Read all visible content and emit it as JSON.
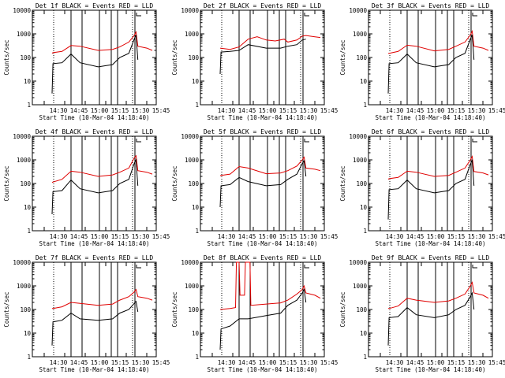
{
  "chart_data": {
    "type": "line",
    "layout": "3x3 grid",
    "y_scale": "log",
    "ylim": [
      1,
      10000
    ],
    "y_ticks": [
      "1",
      "10",
      "100",
      "1000",
      "10000"
    ],
    "x_tick_labels": [
      "14:30",
      "14:45",
      "15:00",
      "15:15",
      "15:30",
      "15:45"
    ],
    "xlabel": "Start Time (10-Mar-04 14:18:40)",
    "ylabel": "Counts/sec",
    "colors": {
      "black_series": "#000000",
      "red_series": "#e00000"
    },
    "panels": [
      {
        "title": "Det 1f BLACK = Events  RED = LLD",
        "red": [
          [
            14.5,
            150
          ],
          [
            15,
            160
          ],
          [
            20,
            180
          ],
          [
            25,
            320
          ],
          [
            30,
            300
          ],
          [
            40,
            200
          ],
          [
            48,
            220
          ],
          [
            52,
            280
          ],
          [
            57,
            450
          ],
          [
            60,
            850
          ],
          [
            61,
            1200
          ],
          [
            62,
            300
          ],
          [
            67,
            250
          ],
          [
            70,
            200
          ]
        ],
        "black": [
          [
            14.5,
            3
          ],
          [
            15,
            55
          ],
          [
            20,
            60
          ],
          [
            25,
            140
          ],
          [
            30,
            60
          ],
          [
            40,
            40
          ],
          [
            48,
            50
          ],
          [
            52,
            100
          ],
          [
            57,
            150
          ],
          [
            60,
            600
          ],
          [
            61,
            900
          ],
          [
            62,
            80
          ]
        ]
      },
      {
        "title": "Det 2f BLACK = Events  RED = LLD",
        "red": [
          [
            14.5,
            250
          ],
          [
            20,
            220
          ],
          [
            25,
            280
          ],
          [
            30,
            600
          ],
          [
            35,
            750
          ],
          [
            40,
            550
          ],
          [
            45,
            500
          ],
          [
            50,
            600
          ],
          [
            52,
            450
          ],
          [
            57,
            550
          ],
          [
            60,
            800
          ],
          [
            62,
            850
          ],
          [
            67,
            750
          ],
          [
            70,
            700
          ]
        ],
        "black": [
          [
            14.5,
            20
          ],
          [
            15,
            170
          ],
          [
            20,
            180
          ],
          [
            25,
            200
          ],
          [
            30,
            350
          ],
          [
            40,
            250
          ],
          [
            48,
            250
          ],
          [
            52,
            300
          ],
          [
            57,
            350
          ],
          [
            60,
            550
          ],
          [
            62,
            600
          ]
        ]
      },
      {
        "title": "Det 3f BLACK = Events  RED = LLD",
        "red": [
          [
            14.5,
            150
          ],
          [
            15,
            150
          ],
          [
            20,
            180
          ],
          [
            25,
            330
          ],
          [
            30,
            300
          ],
          [
            40,
            190
          ],
          [
            48,
            220
          ],
          [
            52,
            300
          ],
          [
            57,
            450
          ],
          [
            60,
            900
          ],
          [
            61,
            1300
          ],
          [
            62,
            300
          ],
          [
            67,
            250
          ],
          [
            70,
            200
          ]
        ],
        "black": [
          [
            14.5,
            3
          ],
          [
            15,
            55
          ],
          [
            20,
            60
          ],
          [
            25,
            140
          ],
          [
            30,
            60
          ],
          [
            40,
            40
          ],
          [
            48,
            50
          ],
          [
            52,
            100
          ],
          [
            57,
            150
          ],
          [
            60,
            600
          ],
          [
            61,
            900
          ],
          [
            62,
            80
          ]
        ]
      },
      {
        "title": "Det 4f BLACK = Events  RED = LLD",
        "red": [
          [
            14.5,
            110
          ],
          [
            15,
            115
          ],
          [
            20,
            150
          ],
          [
            25,
            330
          ],
          [
            30,
            300
          ],
          [
            40,
            200
          ],
          [
            48,
            230
          ],
          [
            52,
            300
          ],
          [
            57,
            450
          ],
          [
            60,
            1200
          ],
          [
            61,
            1500
          ],
          [
            62,
            350
          ],
          [
            67,
            300
          ],
          [
            70,
            250
          ]
        ],
        "black": [
          [
            14.5,
            5
          ],
          [
            15,
            45
          ],
          [
            20,
            50
          ],
          [
            25,
            140
          ],
          [
            30,
            60
          ],
          [
            40,
            40
          ],
          [
            48,
            50
          ],
          [
            52,
            100
          ],
          [
            57,
            150
          ],
          [
            60,
            700
          ],
          [
            61,
            1000
          ],
          [
            62,
            80
          ]
        ]
      },
      {
        "title": "Det 5f BLACK = Events  RED = LLD",
        "red": [
          [
            14.5,
            210
          ],
          [
            15,
            220
          ],
          [
            20,
            250
          ],
          [
            25,
            520
          ],
          [
            30,
            450
          ],
          [
            40,
            260
          ],
          [
            48,
            280
          ],
          [
            52,
            350
          ],
          [
            57,
            550
          ],
          [
            60,
            1000
          ],
          [
            61,
            1300
          ],
          [
            62,
            450
          ],
          [
            67,
            400
          ],
          [
            70,
            350
          ]
        ],
        "black": [
          [
            14.5,
            10
          ],
          [
            15,
            80
          ],
          [
            20,
            90
          ],
          [
            25,
            180
          ],
          [
            30,
            120
          ],
          [
            40,
            80
          ],
          [
            48,
            90
          ],
          [
            52,
            150
          ],
          [
            57,
            250
          ],
          [
            60,
            700
          ],
          [
            61,
            900
          ],
          [
            62,
            200
          ]
        ]
      },
      {
        "title": "Det 6f BLACK = Events  RED = LLD",
        "red": [
          [
            14.5,
            150
          ],
          [
            15,
            160
          ],
          [
            20,
            180
          ],
          [
            25,
            330
          ],
          [
            30,
            300
          ],
          [
            40,
            200
          ],
          [
            48,
            220
          ],
          [
            52,
            300
          ],
          [
            57,
            450
          ],
          [
            60,
            1000
          ],
          [
            61,
            1400
          ],
          [
            62,
            320
          ],
          [
            67,
            280
          ],
          [
            70,
            230
          ]
        ],
        "black": [
          [
            14.5,
            3
          ],
          [
            15,
            55
          ],
          [
            20,
            60
          ],
          [
            25,
            140
          ],
          [
            30,
            60
          ],
          [
            40,
            40
          ],
          [
            48,
            50
          ],
          [
            52,
            100
          ],
          [
            57,
            150
          ],
          [
            60,
            650
          ],
          [
            61,
            950
          ],
          [
            62,
            80
          ]
        ]
      },
      {
        "title": "Det 7f BLACK = Events  RED = LLD",
        "red": [
          [
            14.5,
            110
          ],
          [
            15,
            110
          ],
          [
            20,
            130
          ],
          [
            25,
            200
          ],
          [
            30,
            180
          ],
          [
            40,
            150
          ],
          [
            48,
            170
          ],
          [
            52,
            250
          ],
          [
            57,
            350
          ],
          [
            60,
            550
          ],
          [
            61,
            700
          ],
          [
            62,
            350
          ],
          [
            67,
            300
          ],
          [
            70,
            250
          ]
        ],
        "black": [
          [
            14.5,
            3
          ],
          [
            15,
            30
          ],
          [
            20,
            35
          ],
          [
            25,
            70
          ],
          [
            30,
            40
          ],
          [
            40,
            35
          ],
          [
            48,
            40
          ],
          [
            52,
            70
          ],
          [
            57,
            100
          ],
          [
            60,
            180
          ],
          [
            61,
            220
          ],
          [
            62,
            80
          ]
        ]
      },
      {
        "title": "Det 8f BLACK = Events  RED = LLD",
        "red": [
          [
            14.5,
            100
          ],
          [
            20,
            110
          ],
          [
            23,
            120
          ],
          [
            23.5,
            10000
          ],
          [
            25,
            10000
          ],
          [
            25.5,
            400
          ],
          [
            28,
            400
          ],
          [
            28.5,
            10000
          ],
          [
            31,
            10000
          ],
          [
            31.5,
            150
          ],
          [
            40,
            170
          ],
          [
            48,
            190
          ],
          [
            52,
            250
          ],
          [
            57,
            450
          ],
          [
            60,
            700
          ],
          [
            61,
            1000
          ],
          [
            62,
            500
          ],
          [
            67,
            400
          ],
          [
            70,
            300
          ]
        ],
        "black": [
          [
            14.5,
            2
          ],
          [
            15,
            15
          ],
          [
            20,
            20
          ],
          [
            25,
            40
          ],
          [
            30,
            40
          ],
          [
            40,
            55
          ],
          [
            48,
            70
          ],
          [
            52,
            150
          ],
          [
            57,
            250
          ],
          [
            60,
            500
          ],
          [
            61,
            700
          ],
          [
            62,
            200
          ]
        ]
      },
      {
        "title": "Det 9f BLACK = Events  RED = LLD",
        "red": [
          [
            14.5,
            110
          ],
          [
            15,
            110
          ],
          [
            20,
            140
          ],
          [
            25,
            300
          ],
          [
            30,
            250
          ],
          [
            40,
            200
          ],
          [
            48,
            230
          ],
          [
            52,
            300
          ],
          [
            57,
            450
          ],
          [
            60,
            1000
          ],
          [
            61,
            1400
          ],
          [
            62,
            500
          ],
          [
            67,
            400
          ],
          [
            70,
            300
          ]
        ],
        "black": [
          [
            14.5,
            3
          ],
          [
            15,
            45
          ],
          [
            20,
            50
          ],
          [
            25,
            120
          ],
          [
            30,
            60
          ],
          [
            40,
            45
          ],
          [
            48,
            60
          ],
          [
            52,
            100
          ],
          [
            57,
            150
          ],
          [
            60,
            350
          ],
          [
            61,
            500
          ],
          [
            62,
            100
          ]
        ]
      }
    ]
  }
}
